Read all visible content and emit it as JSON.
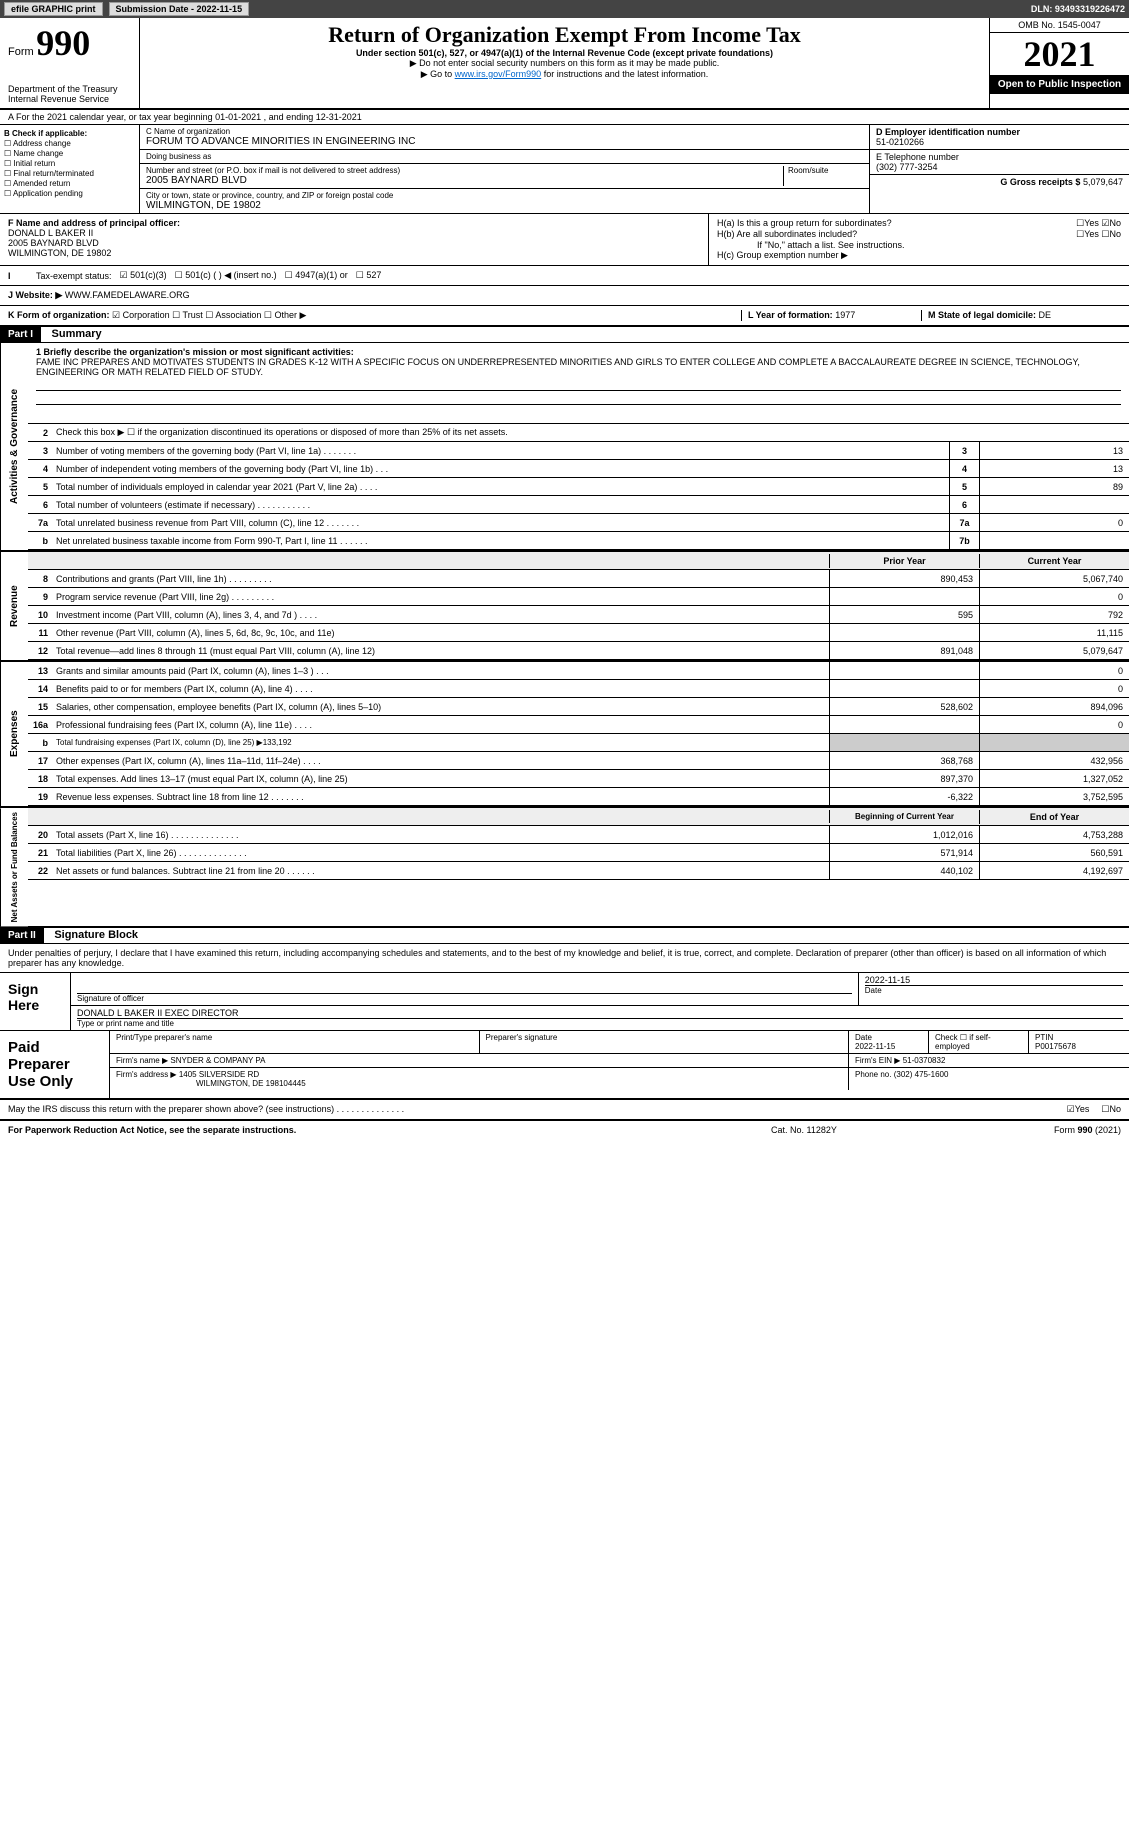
{
  "topbar": {
    "efile": "efile GRAPHIC print",
    "submission": "Submission Date - 2022-11-15",
    "dln": "DLN: 93493319226472"
  },
  "header": {
    "form_label": "Form",
    "form_no": "990",
    "dept": "Department of the Treasury",
    "irs": "Internal Revenue Service",
    "title": "Return of Organization Exempt From Income Tax",
    "subtitle": "Under section 501(c), 527, or 4947(a)(1) of the Internal Revenue Code (except private foundations)",
    "note1": "▶ Do not enter social security numbers on this form as it may be made public.",
    "note2_pre": "▶ Go to ",
    "note2_link": "www.irs.gov/Form990",
    "note2_post": " for instructions and the latest information.",
    "omb": "OMB No. 1545-0047",
    "year": "2021",
    "inspection": "Open to Public Inspection"
  },
  "line_a": "A For the 2021 calendar year, or tax year beginning 01-01-2021    , and ending 12-31-2021",
  "section_b": {
    "label": "B Check if applicable:",
    "items": [
      "Address change",
      "Name change",
      "Initial return",
      "Final return/terminated",
      "Amended return",
      "Application pending"
    ]
  },
  "section_c": {
    "name_label": "C Name of organization",
    "name": "FORUM TO ADVANCE MINORITIES IN ENGINEERING INC",
    "dba_label": "Doing business as",
    "dba": "",
    "addr_label": "Number and street (or P.O. box if mail is not delivered to street address)",
    "room_label": "Room/suite",
    "addr": "2005 BAYNARD BLVD",
    "city_label": "City or town, state or province, country, and ZIP or foreign postal code",
    "city": "WILMINGTON, DE  19802"
  },
  "section_d": {
    "ein_label": "D Employer identification number",
    "ein": "51-0210266",
    "phone_label": "E Telephone number",
    "phone": "(302) 777-3254",
    "gross_label": "G Gross receipts $",
    "gross": "5,079,647"
  },
  "section_f": {
    "label": "F Name and address of principal officer:",
    "name": "DONALD L BAKER II",
    "addr1": "2005 BAYNARD BLVD",
    "addr2": "WILMINGTON, DE  19802"
  },
  "section_h": {
    "a_label": "H(a)  Is this a group return for subordinates?",
    "b_label": "H(b)  Are all subordinates included?",
    "b_note": "If \"No,\" attach a list. See instructions.",
    "c_label": "H(c)  Group exemption number ▶",
    "yes": "Yes",
    "no": "No"
  },
  "line_i": {
    "label": "Tax-exempt status:",
    "opts": [
      "501(c)(3)",
      "501(c) (   ) ◀ (insert no.)",
      "4947(a)(1) or",
      "527"
    ]
  },
  "line_j": {
    "label": "J",
    "text": "Website: ▶",
    "val": "WWW.FAMEDELAWARE.ORG"
  },
  "line_k": {
    "label": "K Form of organization:",
    "opts": [
      "Corporation",
      "Trust",
      "Association",
      "Other ▶"
    ],
    "l_label": "L Year of formation:",
    "l_val": "1977",
    "m_label": "M State of legal domicile:",
    "m_val": "DE"
  },
  "part1": {
    "header": "Part I",
    "title": "Summary",
    "mission_label": "1 Briefly describe the organization's mission or most significant activities:",
    "mission": "FAME INC PREPARES AND MOTIVATES STUDENTS IN GRADES K-12 WITH A SPECIFIC FOCUS ON UNDERREPRESENTED MINORITIES AND GIRLS TO ENTER COLLEGE AND COMPLETE A BACCALAUREATE DEGREE IN SCIENCE, TECHNOLOGY, ENGINEERING OR MATH RELATED FIELD OF STUDY.",
    "sections": {
      "governance": {
        "label": "Activities & Governance",
        "lines": [
          {
            "n": "2",
            "t": "Check this box ▶ ☐ if the organization discontinued its operations or disposed of more than 25% of its net assets."
          },
          {
            "n": "3",
            "t": "Number of voting members of the governing body (Part VI, line 1a)  .   .   .   .   .   .   .",
            "box": "3",
            "v": "13"
          },
          {
            "n": "4",
            "t": "Number of independent voting members of the governing body (Part VI, line 1b)   .   .   .",
            "box": "4",
            "v": "13"
          },
          {
            "n": "5",
            "t": "Total number of individuals employed in calendar year 2021 (Part V, line 2a)    .   .   .   .",
            "box": "5",
            "v": "89"
          },
          {
            "n": "6",
            "t": "Total number of volunteers (estimate if necessary)    .   .   .   .   .   .   .   .   .   .   .",
            "box": "6",
            "v": ""
          },
          {
            "n": "7a",
            "t": "Total unrelated business revenue from Part VIII, column (C), line 12   .   .   .   .   .   .   .",
            "box": "7a",
            "v": "0"
          },
          {
            "n": "b",
            "t": "Net unrelated business taxable income from Form 990-T, Part I, line 11  .   .   .   .   .   .",
            "box": "7b",
            "v": ""
          }
        ]
      },
      "revenue": {
        "label": "Revenue",
        "head_prior": "Prior Year",
        "head_current": "Current Year",
        "lines": [
          {
            "n": "8",
            "t": "Contributions and grants (Part VIII, line 1h)   .   .   .   .   .   .   .   .   .",
            "p": "890,453",
            "c": "5,067,740"
          },
          {
            "n": "9",
            "t": "Program service revenue (Part VIII, line 2g)   .   .   .   .   .   .   .   .   .",
            "p": "",
            "c": "0"
          },
          {
            "n": "10",
            "t": "Investment income (Part VIII, column (A), lines 3, 4, and 7d )   .   .   .   .",
            "p": "595",
            "c": "792"
          },
          {
            "n": "11",
            "t": "Other revenue (Part VIII, column (A), lines 5, 6d, 8c, 9c, 10c, and 11e)",
            "p": "",
            "c": "11,115"
          },
          {
            "n": "12",
            "t": "Total revenue—add lines 8 through 11 (must equal Part VIII, column (A), line 12)",
            "p": "891,048",
            "c": "5,079,647"
          }
        ]
      },
      "expenses": {
        "label": "Expenses",
        "lines": [
          {
            "n": "13",
            "t": "Grants and similar amounts paid (Part IX, column (A), lines 1–3 )   .   .   .",
            "p": "",
            "c": "0"
          },
          {
            "n": "14",
            "t": "Benefits paid to or for members (Part IX, column (A), line 4)   .   .   .   .",
            "p": "",
            "c": "0"
          },
          {
            "n": "15",
            "t": "Salaries, other compensation, employee benefits (Part IX, column (A), lines 5–10)",
            "p": "528,602",
            "c": "894,096"
          },
          {
            "n": "16a",
            "t": "Professional fundraising fees (Part IX, column (A), line 11e)   .   .   .   .",
            "p": "",
            "c": "0"
          },
          {
            "n": "b",
            "t": "Total fundraising expenses (Part IX, column (D), line 25) ▶133,192",
            "shaded": true
          },
          {
            "n": "17",
            "t": "Other expenses (Part IX, column (A), lines 11a–11d, 11f–24e)   .   .   .   .",
            "p": "368,768",
            "c": "432,956"
          },
          {
            "n": "18",
            "t": "Total expenses. Add lines 13–17 (must equal Part IX, column (A), line 25)",
            "p": "897,370",
            "c": "1,327,052"
          },
          {
            "n": "19",
            "t": "Revenue less expenses. Subtract line 18 from line 12  .   .   .   .   .   .   .",
            "p": "-6,322",
            "c": "3,752,595"
          }
        ]
      },
      "netassets": {
        "label": "Net Assets or Fund Balances",
        "head_begin": "Beginning of Current Year",
        "head_end": "End of Year",
        "lines": [
          {
            "n": "20",
            "t": "Total assets (Part X, line 16)   .   .   .   .   .   .   .   .   .   .   .   .   .   .",
            "p": "1,012,016",
            "c": "4,753,288"
          },
          {
            "n": "21",
            "t": "Total liabilities (Part X, line 26)  .   .   .   .   .   .   .   .   .   .   .   .   .   .",
            "p": "571,914",
            "c": "560,591"
          },
          {
            "n": "22",
            "t": "Net assets or fund balances. Subtract line 21 from line 20  .   .   .   .   .   .",
            "p": "440,102",
            "c": "4,192,697"
          }
        ]
      }
    }
  },
  "part2": {
    "header": "Part II",
    "title": "Signature Block",
    "declaration": "Under penalties of perjury, I declare that I have examined this return, including accompanying schedules and statements, and to the best of my knowledge and belief, it is true, correct, and complete. Declaration of preparer (other than officer) is based on all information of which preparer has any knowledge.",
    "sign_here": "Sign Here",
    "sig_officer": "Signature of officer",
    "sig_date": "2022-11-15",
    "date_label": "Date",
    "officer_name": "DONALD L BAKER II  EXEC DIRECTOR",
    "type_label": "Type or print name and title",
    "paid": "Paid Preparer Use Only",
    "prep_name_label": "Print/Type preparer's name",
    "prep_sig_label": "Preparer's signature",
    "prep_date": "2022-11-15",
    "check_label": "Check ☐ if self-employed",
    "ptin_label": "PTIN",
    "ptin": "P00175678",
    "firm_name_label": "Firm's name    ▶",
    "firm_name": "SNYDER & COMPANY PA",
    "firm_ein_label": "Firm's EIN ▶",
    "firm_ein": "51-0370832",
    "firm_addr_label": "Firm's address ▶",
    "firm_addr1": "1405 SILVERSIDE RD",
    "firm_addr2": "WILMINGTON, DE  198104445",
    "firm_phone_label": "Phone no.",
    "firm_phone": "(302) 475-1600",
    "discuss": "May the IRS discuss this return with the preparer shown above? (see instructions)   .   .   .   .   .   .   .   .   .   .   .   .   .   .",
    "discuss_yes": "Yes",
    "discuss_no": "No"
  },
  "footer": {
    "left": "For Paperwork Reduction Act Notice, see the separate instructions.",
    "mid": "Cat. No. 11282Y",
    "right": "Form 990 (2021)"
  }
}
